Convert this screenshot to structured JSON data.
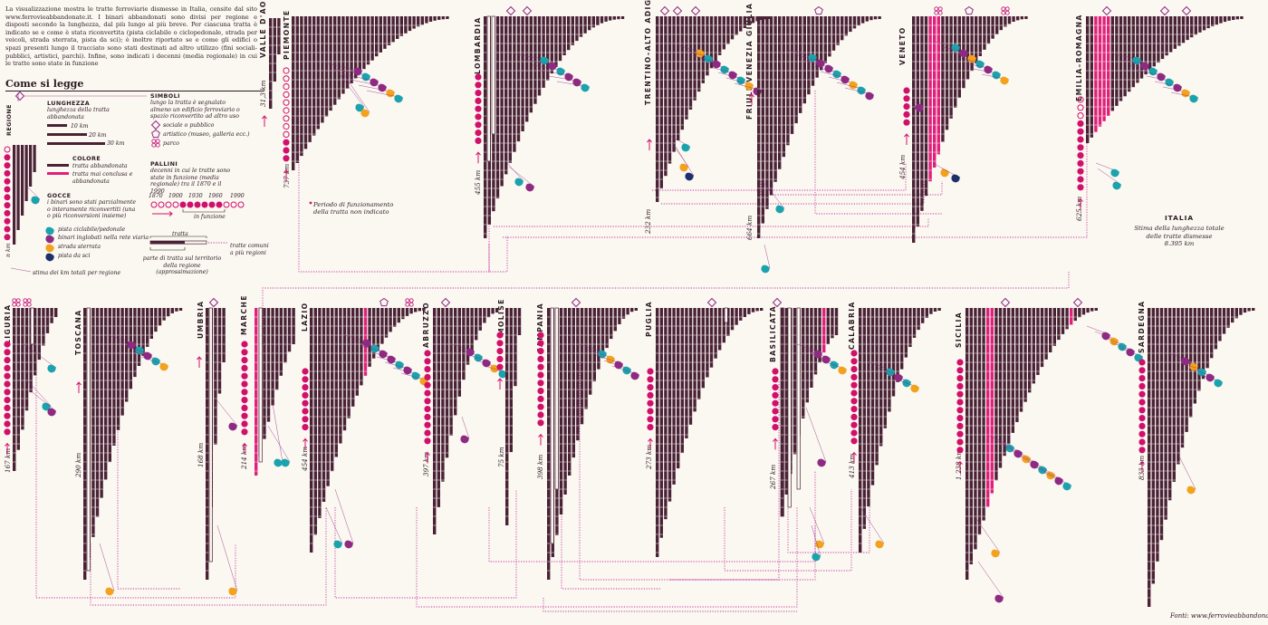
{
  "intro_text": "La visualizzazione mostra le tratte ferroviarie dismesse in Italia, censite dal sito www.ferrovieabbandonate.it. I binari abbandonati sono divisi per regione e disposti secondo la lunghezza, dal più lungo al più breve. Per ciascuna tratta è indicato se e come è stata riconvertita (pista ciclabile o ciclopedonale, strada per veicoli, strada sterrata, pista da sci); è inoltre riportato se e come gli edifici o spazi presenti lungo il tracciato sono stati destinati ad altro utilizzo (fini sociali-pubblici, artistici, parchi). Infine, sono indicati i decenni (media regionale) in cui le tratte sono state in funzione",
  "legend": {
    "title": "Come si legge",
    "regione": "REGIONE",
    "stima_km_label": "n km",
    "stima_km_note": "stima dei km totali per regione",
    "lunghezza": {
      "heading": "LUNGHEZZA",
      "desc": "lunghezza della tratta abbandonata",
      "scale": [
        "10 km",
        "20 km",
        "30 km"
      ]
    },
    "colore": {
      "heading": "COLORE",
      "items": [
        "tratta abbandonata",
        "tratta mai conclusa e abbandonata"
      ]
    },
    "gocce": {
      "heading": "GOCCE",
      "desc": "i binari sono stati parzialmente o interamente riconvertiti (una o più riconversioni insieme)",
      "items": [
        {
          "label": "pista ciclabile/pedonale",
          "color": "#1aa3ad"
        },
        {
          "label": "binari inglobati nella rete viaria",
          "color": "#8e2a82"
        },
        {
          "label": "strada sterrata",
          "color": "#f2a21d"
        },
        {
          "label": "pista da sci",
          "color": "#1e2f6b"
        }
      ]
    },
    "simboli": {
      "heading": "SIMBOLI",
      "desc": "lungo la tratta è segnalato almeno un edificio ferroviario o spazio riconvertito ad altro uso",
      "items": [
        {
          "label": "sociale o pubblico",
          "icon": "diamond-icon"
        },
        {
          "label": "artistico (museo, galleria ecc.)",
          "icon": "pentagon-icon"
        },
        {
          "label": "parco",
          "icon": "flower-icon"
        }
      ]
    },
    "pallini": {
      "heading": "PALLINI",
      "desc": "decenni in cui le tratte sono state in funzione (media regionale) tra il 1870 e il 1990",
      "years": [
        "1870",
        "1900",
        "1930",
        "1960",
        "1990"
      ],
      "in_funzione": "in funzione"
    },
    "tratta": {
      "label": "tratta",
      "parte": "parte di tratta sul territorio della regione (approssimazione)",
      "comuni": "tratte comuni a più regioni"
    }
  },
  "periodo_note": "Periodo di funzionamento della tratta non indicato",
  "italia": {
    "title": "ITALIA",
    "desc": "Stima della lunghezza totale delle tratte dismesse",
    "km": "8.395 km"
  },
  "fonti": "Fonti: www.ferrovieabbandonate.it",
  "colors": {
    "abbandonata": "#4a2236",
    "mai_conclusa": "#e0207a",
    "dot": "#d0106a",
    "dotted_line": "#c23aa2",
    "background": "#fbf7f1"
  },
  "chart_data": {
    "type": "bar",
    "regions": [
      {
        "name": "VALLE D'AOSTA",
        "km": "31,3 km"
      },
      {
        "name": "PIEMONTE",
        "km": "737 km"
      },
      {
        "name": "LOMBARDIA",
        "km": "455 km"
      },
      {
        "name": "TRENTINO–ALTO ADIGE",
        "km": "232 km"
      },
      {
        "name": "FRIULI–VENEZIA GIULIA",
        "km": "664 km"
      },
      {
        "name": "VENETO",
        "km": "454 km"
      },
      {
        "name": "EMILIA–ROMAGNA",
        "km": "625 km"
      },
      {
        "name": "LIGURIA",
        "km": "167 km"
      },
      {
        "name": "TOSCANA",
        "km": "290 km"
      },
      {
        "name": "UMBRIA",
        "km": "168 km"
      },
      {
        "name": "MARCHE",
        "km": "214 km"
      },
      {
        "name": "LAZIO",
        "km": "454 km"
      },
      {
        "name": "ABRUZZO",
        "km": "397 km"
      },
      {
        "name": "MOLISE",
        "km": "75 km"
      },
      {
        "name": "CAMPANIA",
        "km": "398 km"
      },
      {
        "name": "PUGLIA",
        "km": "273 km"
      },
      {
        "name": "BASILICATA",
        "km": "267 km"
      },
      {
        "name": "CALABRIA",
        "km": "413 km"
      },
      {
        "name": "SICILIA",
        "km": "1.238 km"
      },
      {
        "name": "SARDEGNA",
        "km": "833 km"
      }
    ]
  }
}
